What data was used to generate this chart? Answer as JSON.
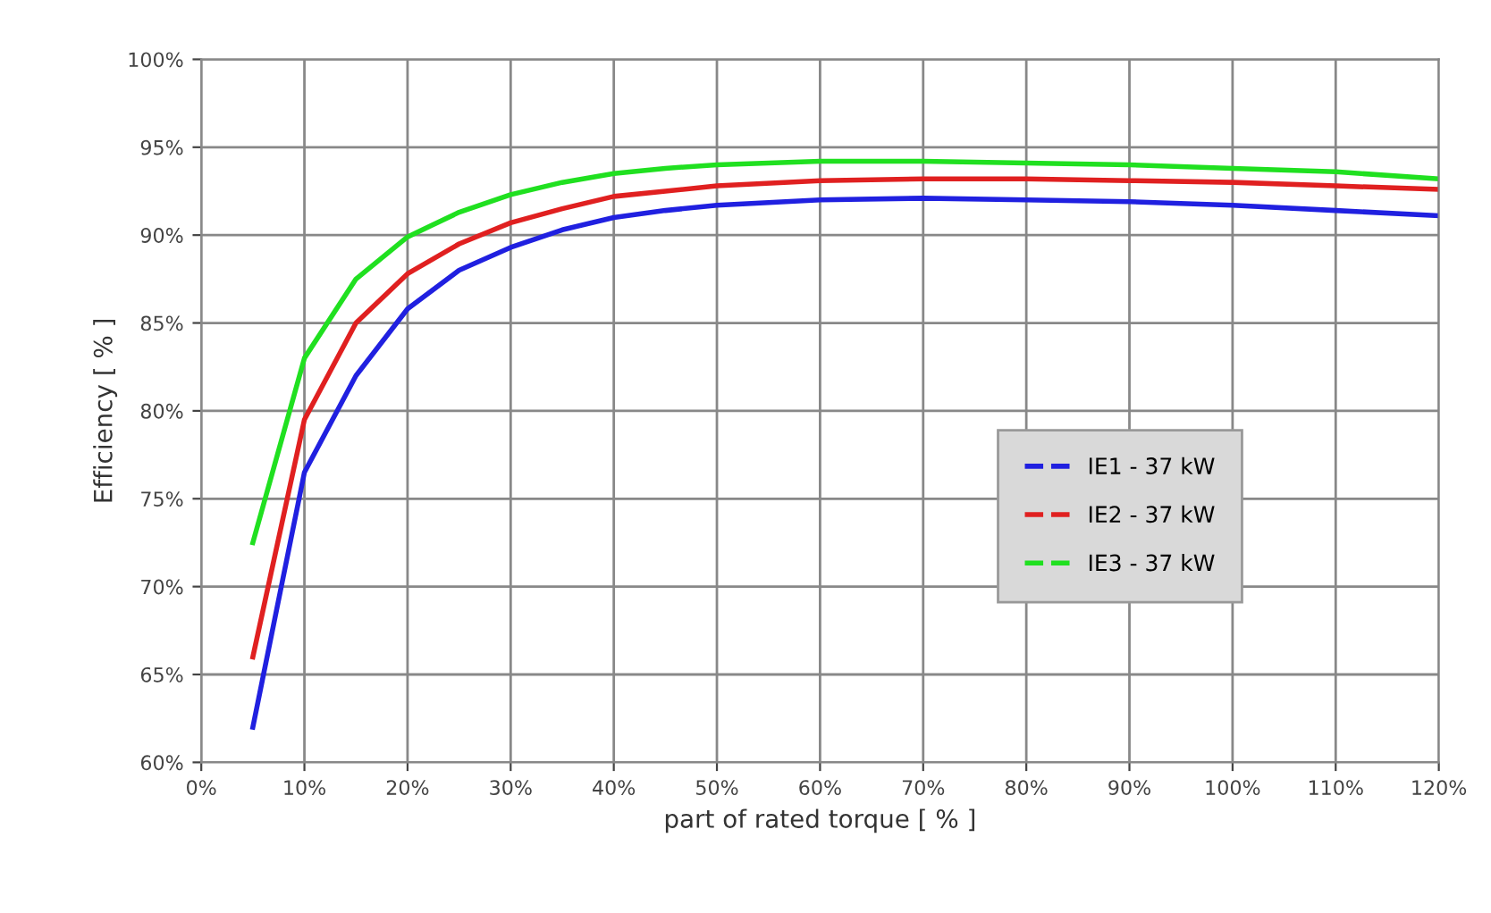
{
  "chart_data": {
    "type": "line",
    "xlabel": "part of rated torque [ % ]",
    "ylabel": "Efficiency [ % ]",
    "xlim": [
      0,
      120
    ],
    "ylim": [
      60,
      100
    ],
    "xticks": [
      {
        "value": 0,
        "label": "0%"
      },
      {
        "value": 10,
        "label": "10%"
      },
      {
        "value": 20,
        "label": "20%"
      },
      {
        "value": 30,
        "label": "30%"
      },
      {
        "value": 40,
        "label": "40%"
      },
      {
        "value": 50,
        "label": "50%"
      },
      {
        "value": 60,
        "label": "60%"
      },
      {
        "value": 70,
        "label": "70%"
      },
      {
        "value": 80,
        "label": "80%"
      },
      {
        "value": 90,
        "label": "90%"
      },
      {
        "value": 100,
        "label": "100%"
      },
      {
        "value": 110,
        "label": "110%"
      },
      {
        "value": 120,
        "label": "120%"
      }
    ],
    "yticks": [
      {
        "value": 60,
        "label": "60%"
      },
      {
        "value": 65,
        "label": "65%"
      },
      {
        "value": 70,
        "label": "70%"
      },
      {
        "value": 75,
        "label": "75%"
      },
      {
        "value": 80,
        "label": "80%"
      },
      {
        "value": 85,
        "label": "85%"
      },
      {
        "value": 90,
        "label": "90%"
      },
      {
        "value": 95,
        "label": "95%"
      },
      {
        "value": 100,
        "label": "100%"
      }
    ],
    "grid": true,
    "legend": "right",
    "line_style": "solid",
    "x": [
      5,
      10,
      15,
      20,
      25,
      30,
      35,
      40,
      45,
      50,
      60,
      70,
      80,
      90,
      100,
      110,
      120
    ],
    "series": [
      {
        "name": "IE1 - 37 kW",
        "color": "#2020e0",
        "values": [
          62,
          76.5,
          82,
          85.8,
          88,
          89.3,
          90.3,
          91,
          91.4,
          91.7,
          92,
          92.1,
          92,
          91.9,
          91.7,
          91.4,
          91.1
        ]
      },
      {
        "name": "IE2 - 37 kW",
        "color": "#e02020",
        "values": [
          66,
          79.5,
          85,
          87.8,
          89.5,
          90.7,
          91.5,
          92.2,
          92.5,
          92.8,
          93.1,
          93.2,
          93.2,
          93.1,
          93,
          92.8,
          92.6
        ]
      },
      {
        "name": "IE3 - 37 kW",
        "color": "#20e020",
        "values": [
          72.5,
          83,
          87.5,
          89.9,
          91.3,
          92.3,
          93,
          93.5,
          93.8,
          94,
          94.2,
          94.2,
          94.1,
          94,
          93.8,
          93.6,
          93.2
        ]
      }
    ]
  }
}
